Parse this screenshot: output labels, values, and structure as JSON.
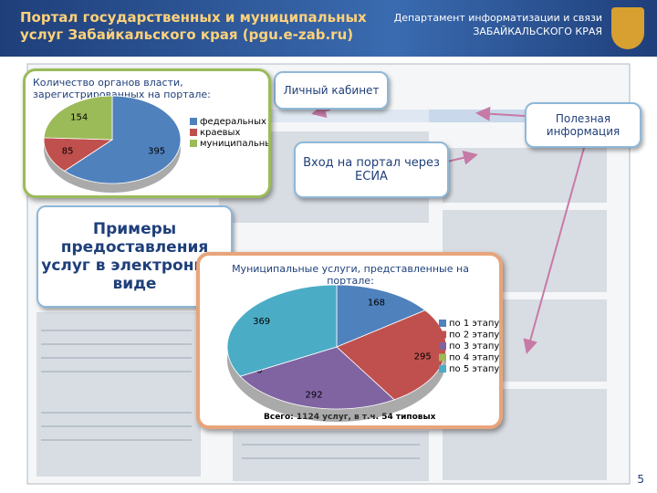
{
  "header": {
    "title": "Портал государственных и муниципальных услуг Забайкальского края (pgu.e-zab.ru)",
    "department": [
      "Департамент информатизации и связи",
      "ЗАБАЙКАЛЬСКОГО КРАЯ"
    ]
  },
  "callouts": {
    "cabinet": "Личный кабинет",
    "info": "Полезная информация",
    "esia": "Вход на портал через ЕСИА",
    "examples": "Примеры предоставления услуг в электронном виде"
  },
  "charts": [
    {
      "type": "pie",
      "title": "Количество органов власти, зарегистрированных на портале:",
      "categories": [
        "федеральных",
        "краевых",
        "муниципальных"
      ],
      "values": [
        395,
        85,
        154
      ],
      "colors": [
        "#4f81bd",
        "#c0504d",
        "#9bbb59"
      ]
    },
    {
      "type": "pie",
      "title": "Муниципальные услуги, представленные на портале:",
      "categories": [
        "по 1 этапу",
        "по 2 этапу",
        "по 3 этапу",
        "по 4 этапу",
        "по 5 этапу"
      ],
      "values": [
        168,
        295,
        292,
        0,
        369
      ],
      "colors": [
        "#4f81bd",
        "#c0504d",
        "#8064a2",
        "#9bbb59",
        "#4bacc6"
      ],
      "footnote": "Всего: 1124 услуг, в т.ч. 54 типовых"
    }
  ],
  "page_number": "5"
}
